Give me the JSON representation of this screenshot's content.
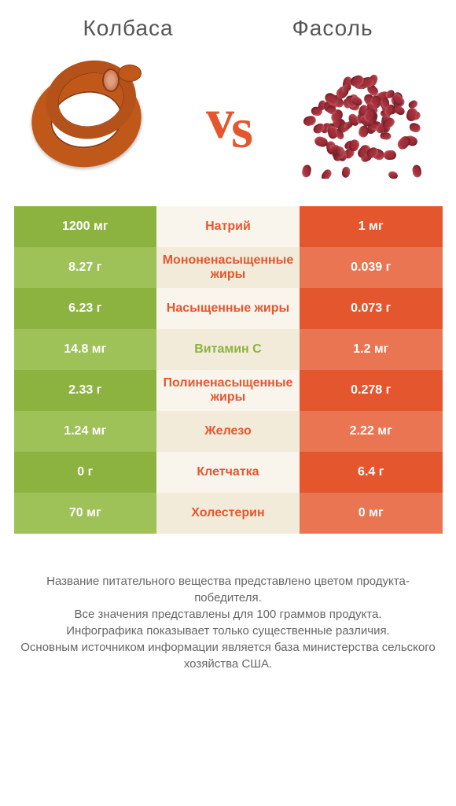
{
  "header": {
    "left_title": "Колбаса",
    "right_title": "Фасоль"
  },
  "vs_text": "vs",
  "colors": {
    "green_solid": "#8cb33f",
    "green_light": "#9ec158",
    "orange_solid": "#e4572e",
    "orange_light": "#e97552",
    "mid_light": "#f9f5ed",
    "mid_dark": "#f3ebd9",
    "white": "#ffffff"
  },
  "comparison": {
    "type": "table",
    "rows": [
      {
        "left": "1200 мг",
        "label": "Натрий",
        "right": "1 мг",
        "winner": "orange"
      },
      {
        "left": "8.27 г",
        "label": "Мононенасыщенные жиры",
        "right": "0.039 г",
        "winner": "orange"
      },
      {
        "left": "6.23 г",
        "label": "Насыщенные жиры",
        "right": "0.073 г",
        "winner": "orange"
      },
      {
        "left": "14.8 мг",
        "label": "Витамин C",
        "right": "1.2 мг",
        "winner": "green"
      },
      {
        "left": "2.33 г",
        "label": "Полиненасыщенные жиры",
        "right": "0.278 г",
        "winner": "orange"
      },
      {
        "left": "1.24 мг",
        "label": "Железо",
        "right": "2.22 мг",
        "winner": "orange"
      },
      {
        "left": "0 г",
        "label": "Клетчатка",
        "right": "6.4 г",
        "winner": "orange"
      },
      {
        "left": "70 мг",
        "label": "Холестерин",
        "right": "0 мг",
        "winner": "orange"
      }
    ]
  },
  "footer": {
    "line1": "Название питательного вещества представлено цветом продукта-победителя.",
    "line2": "Все значения представлены для 100 граммов продукта.",
    "line3": "Инфографика показывает только существенные различия.",
    "line4": "Основным источником информации является база министерства сельского хозяйства США."
  },
  "typography": {
    "title_fontsize": 28,
    "vs_fontsize": 72,
    "cell_fontsize": 16,
    "footer_fontsize": 15
  }
}
